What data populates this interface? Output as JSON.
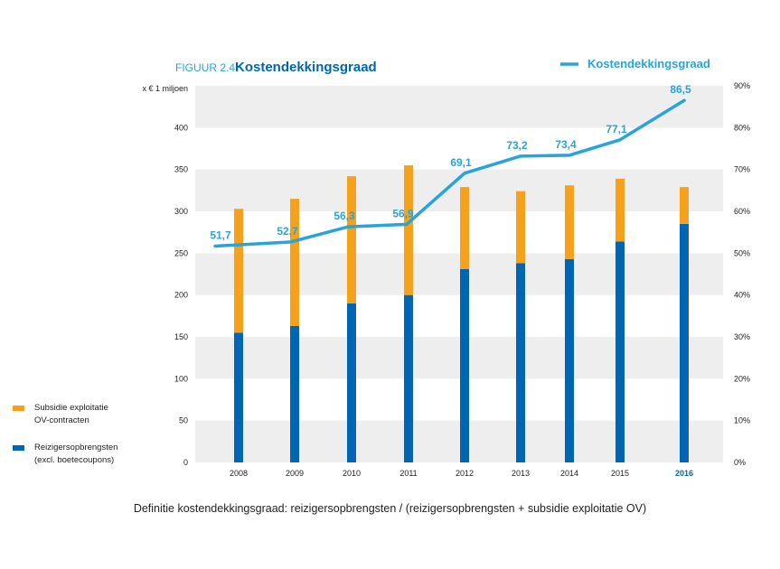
{
  "figure": {
    "number": "FIGUUR 2.4",
    "title": "Kostendekkingsgraad"
  },
  "legend": {
    "line_label": "Kostendekkingsgraad",
    "subsidie_line1": "Subsidie exploitatie",
    "subsidie_line2": "OV-contracten",
    "reiziger_line1": "Reizigersopbrengsten",
    "reiziger_line2": "(excl. boetecoupons)"
  },
  "definition": "Definitie kostendekkingsgraad: reizigersopbrengsten / (reizigersopbrengsten + subsidie exploitatie OV)",
  "chart_data": {
    "type": "bar",
    "stacked": true,
    "ylabel": "x € 1 miljoen",
    "categories": [
      "2008",
      "2009",
      "2010",
      "2011",
      "2012",
      "2013",
      "2014",
      "2015",
      "2016"
    ],
    "highlight_category": "2016",
    "ylim": [
      0,
      450
    ],
    "yticks": [
      0,
      50,
      100,
      150,
      200,
      250,
      300,
      350,
      400
    ],
    "y2lim": [
      0,
      90
    ],
    "y2ticks": [
      "0%",
      "10%",
      "20%",
      "30%",
      "40%",
      "50%",
      "60%",
      "70%",
      "80%",
      "90%"
    ],
    "series": [
      {
        "name": "Reizigersopbrengsten",
        "color": "#0066b3",
        "values": [
          155,
          163,
          190,
          200,
          231,
          238,
          243,
          264,
          285
        ]
      },
      {
        "name": "Subsidie exploitatie",
        "color": "#f5a11c",
        "values": [
          148,
          152,
          152,
          155,
          98,
          86,
          88,
          75,
          44
        ]
      }
    ],
    "line": {
      "name": "Kostendekkingsgraad",
      "color": "#2aa3d9",
      "axis": "right",
      "values": [
        51.7,
        52.7,
        56.3,
        56.9,
        69.1,
        73.2,
        73.4,
        77.1,
        86.5
      ],
      "labels": [
        "51,7",
        "52,7",
        "56,3",
        "56,9",
        "69,1",
        "73,2",
        "73,4",
        "77,1",
        "86,5"
      ]
    },
    "grid": "alternating-bands"
  },
  "colors": {
    "band": "#eeeeee",
    "title": "#0066b3",
    "figure_number": "#2aa3d9",
    "text": "#222222"
  }
}
